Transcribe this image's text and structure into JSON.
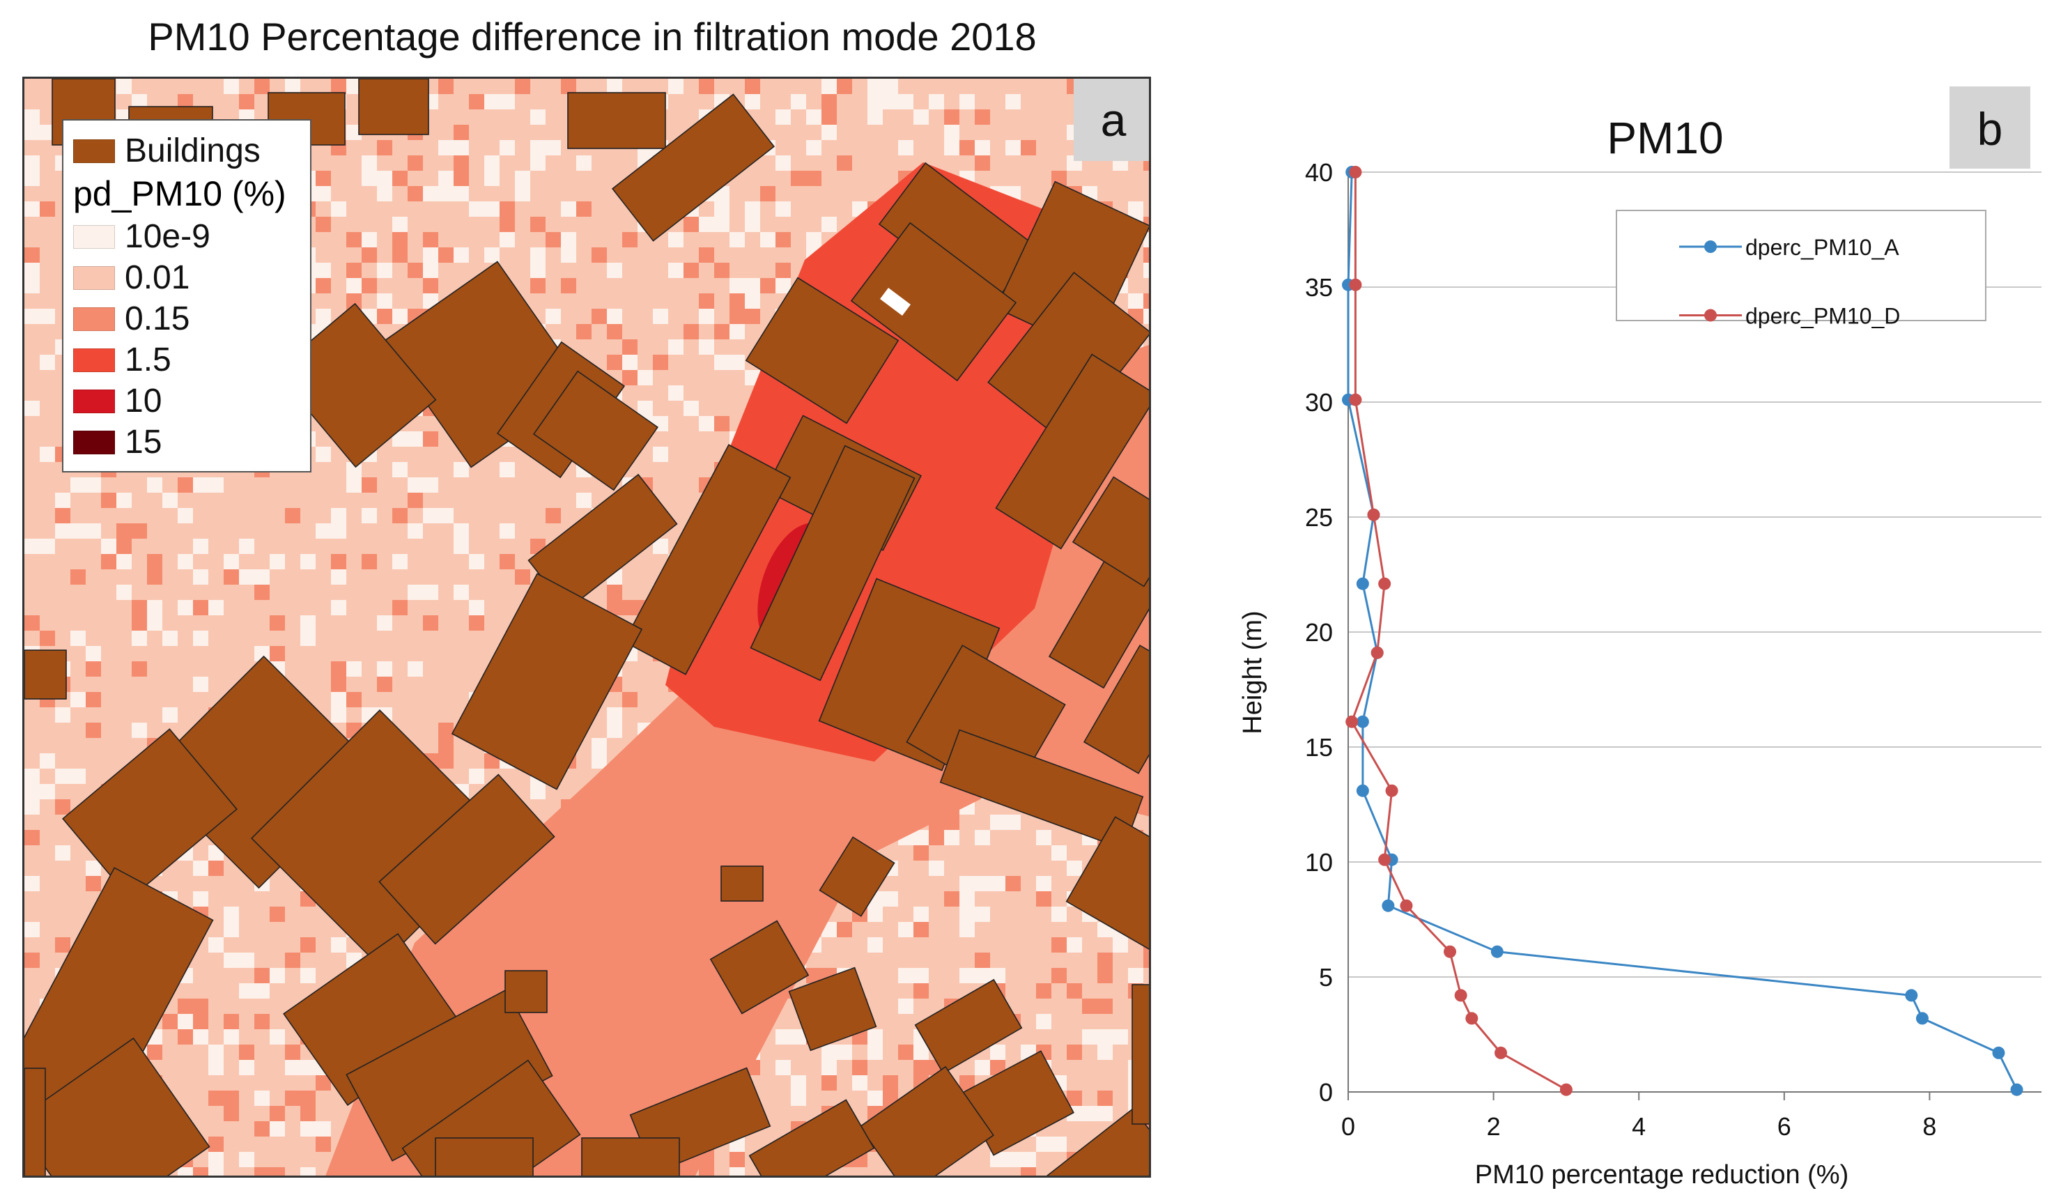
{
  "panel_a": {
    "title": "PM10 Percentage difference in filtration mode 2018",
    "label": "a",
    "legend": {
      "buildings_label": "Buildings",
      "buildings_color": "#a24f15",
      "scale_title": "pd_PM10 (%)",
      "items": [
        {
          "label": "10e-9",
          "color": "#fdf1ec"
        },
        {
          "label": "0.01",
          "color": "#f9c6b2"
        },
        {
          "label": "0.15",
          "color": "#f48b6e"
        },
        {
          "label": "1.5",
          "color": "#f04a36"
        },
        {
          "label": "10",
          "color": "#d31621"
        },
        {
          "label": "15",
          "color": "#6b0008"
        }
      ]
    }
  },
  "chart_data": {
    "type": "line",
    "title": "PM10",
    "label": "b",
    "xlabel": "PM10 percentage  reduction (%)",
    "ylabel": "Height (m)",
    "xlim": [
      0,
      10
    ],
    "ylim": [
      0,
      40
    ],
    "x_ticks": [
      "0",
      "2",
      "4",
      "6",
      "8",
      "10"
    ],
    "y_ticks": [
      "0",
      "5",
      "10",
      "15",
      "20",
      "25",
      "30",
      "35",
      "40"
    ],
    "grid": "horizontal",
    "legend_position": "top-right",
    "series": [
      {
        "name": "dperc_PM10_A",
        "color": "#3a86c4",
        "points": [
          [
            9.2,
            0.1
          ],
          [
            8.95,
            1.7
          ],
          [
            7.9,
            3.2
          ],
          [
            7.75,
            4.2
          ],
          [
            2.05,
            6.1
          ],
          [
            0.55,
            8.1
          ],
          [
            0.6,
            10.1
          ],
          [
            0.2,
            13.1
          ],
          [
            0.2,
            16.1
          ],
          [
            0.4,
            19.1
          ],
          [
            0.2,
            22.1
          ],
          [
            0.35,
            25.1
          ],
          [
            0.0,
            30.1
          ],
          [
            0.0,
            35.1
          ],
          [
            0.05,
            40.0
          ]
        ]
      },
      {
        "name": "dperc_PM10_D",
        "color": "#c9504f",
        "points": [
          [
            3.0,
            0.1
          ],
          [
            2.1,
            1.7
          ],
          [
            1.7,
            3.2
          ],
          [
            1.55,
            4.2
          ],
          [
            1.4,
            6.1
          ],
          [
            0.8,
            8.1
          ],
          [
            0.5,
            10.1
          ],
          [
            0.6,
            13.1
          ],
          [
            0.05,
            16.1
          ],
          [
            0.4,
            19.1
          ],
          [
            0.5,
            22.1
          ],
          [
            0.35,
            25.1
          ],
          [
            0.1,
            30.1
          ],
          [
            0.1,
            35.1
          ],
          [
            0.1,
            40.0
          ]
        ]
      }
    ]
  }
}
